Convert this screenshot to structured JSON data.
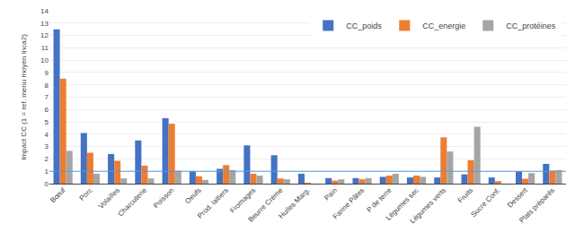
{
  "chart_data": {
    "type": "bar",
    "categories": [
      "Bœuf",
      "Porc",
      "Volailles",
      "Charcuterie",
      "Poisson",
      "Oeufs",
      "Prod. laitiers",
      "Fromages",
      "Beurre Crème",
      "Huiles Marg.",
      "Pain",
      "Farine Pâtes",
      "P de terre",
      "Légumes sec",
      "Légumes verts",
      "Fruits",
      "Sucre Conf.",
      "Dessert",
      "Plats préparés"
    ],
    "series": [
      {
        "name": "CC_poids",
        "color": "#4472C4",
        "values": [
          12.5,
          4.1,
          2.4,
          3.5,
          5.3,
          1.0,
          1.2,
          3.1,
          2.3,
          0.8,
          0.45,
          0.45,
          0.55,
          0.5,
          0.5,
          0.75,
          0.5,
          1.0,
          1.6
        ]
      },
      {
        "name": "CC_energie",
        "color": "#ED7D31",
        "values": [
          8.5,
          2.5,
          1.85,
          1.45,
          4.85,
          0.6,
          1.5,
          0.8,
          0.42,
          0.05,
          0.25,
          0.35,
          0.65,
          0.65,
          3.75,
          1.9,
          0.2,
          0.4,
          1.05
        ]
      },
      {
        "name": "CC_protéines",
        "color": "#A5A5A5",
        "values": [
          2.65,
          0.8,
          0.42,
          0.42,
          1.05,
          0.3,
          1.1,
          0.65,
          0.35,
          0.0,
          0.35,
          0.45,
          0.8,
          0.55,
          2.6,
          4.6,
          0.0,
          0.85,
          1.1
        ]
      }
    ],
    "ylabel": "Impact CC (1 = ref. menu moyen Inca2)",
    "ylim": [
      0,
      14
    ],
    "yticks": [
      0,
      1,
      2,
      3,
      4,
      5,
      6,
      7,
      8,
      9,
      10,
      11,
      12,
      13,
      14
    ],
    "hline": {
      "y": 1.0,
      "color": "#5B9BD5"
    },
    "grid": true,
    "legend": "upper right"
  }
}
